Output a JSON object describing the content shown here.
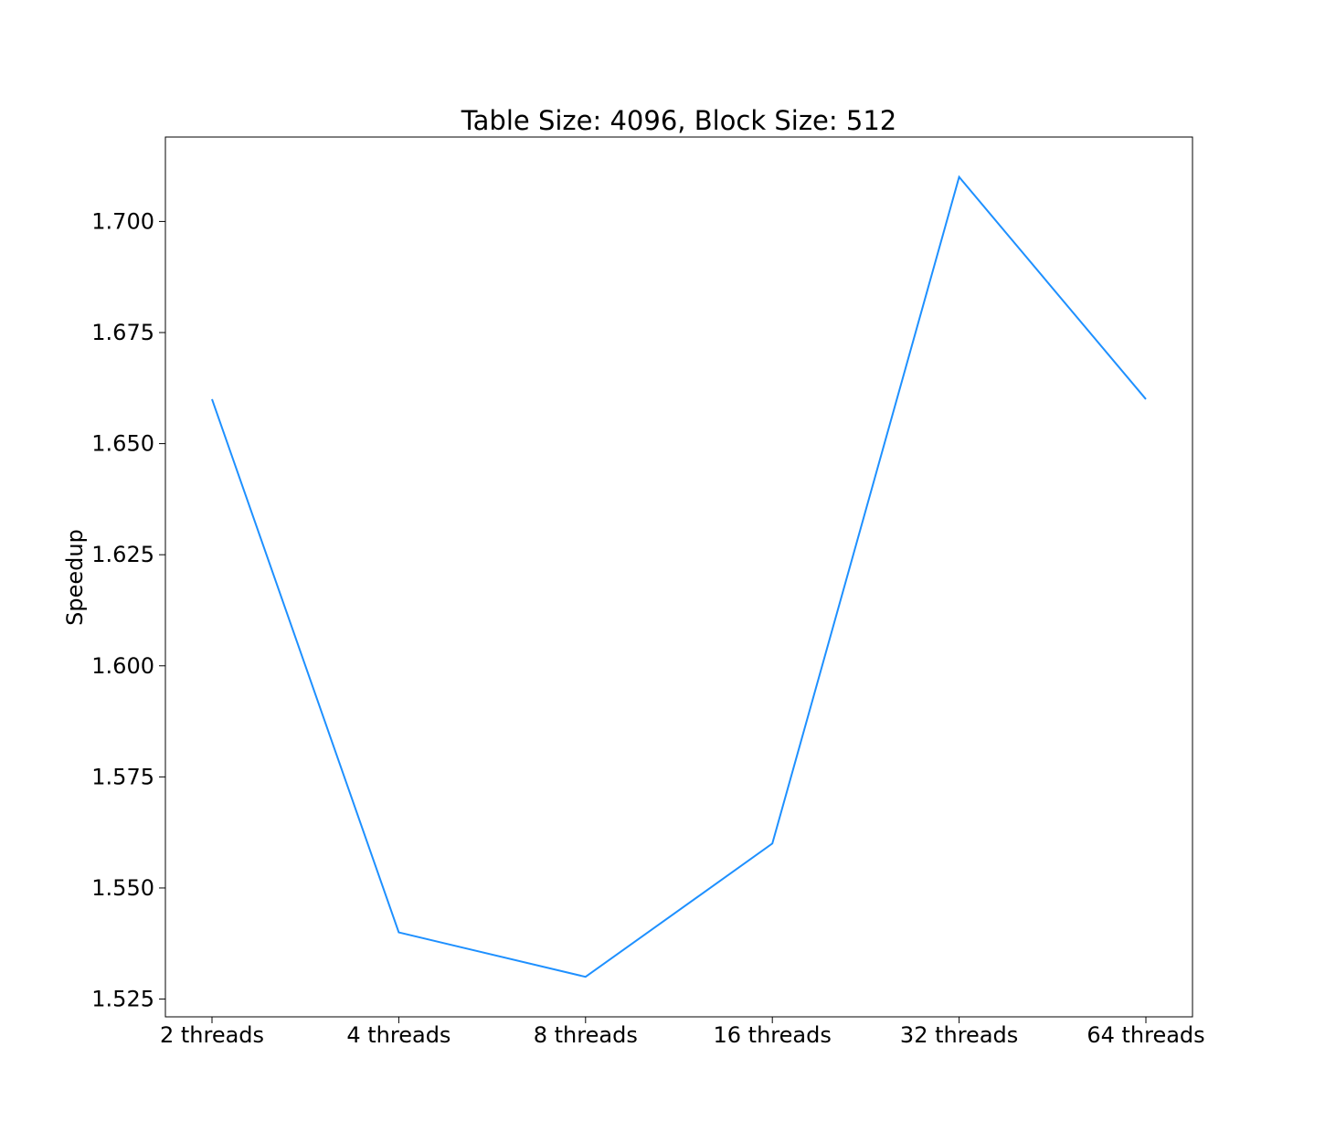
{
  "chart_data": {
    "type": "line",
    "title": "Table Size: 4096, Block Size: 512",
    "xlabel": "",
    "ylabel": "Speedup",
    "categories": [
      "2 threads",
      "4 threads",
      "8 threads",
      "16 threads",
      "32 threads",
      "64 threads"
    ],
    "series": [
      {
        "values": [
          1.66,
          1.54,
          1.53,
          1.56,
          1.71,
          1.66
        ],
        "color": "#1e90ff"
      }
    ],
    "ylim": [
      1.521,
      1.719
    ],
    "yticks": [
      1.525,
      1.55,
      1.575,
      1.6,
      1.625,
      1.65,
      1.675,
      1.7
    ],
    "ytick_labels": [
      "1.525",
      "1.550",
      "1.575",
      "1.600",
      "1.625",
      "1.650",
      "1.675",
      "1.700"
    ],
    "grid": false,
    "legend": "none"
  }
}
